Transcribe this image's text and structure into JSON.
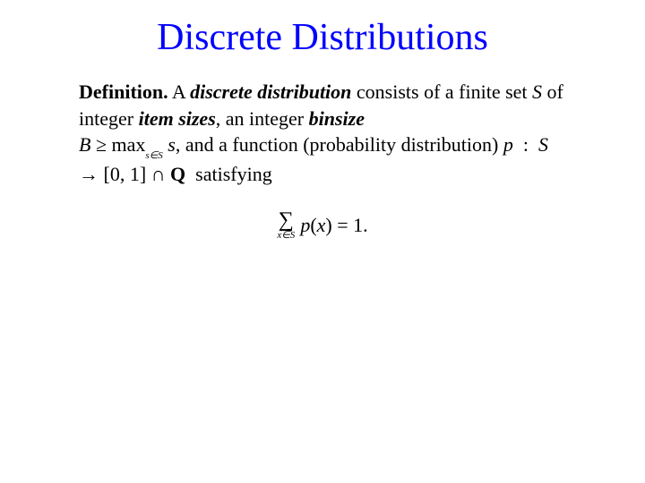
{
  "title": "Discrete Distributions",
  "def_label": "Definition.",
  "a_word": "A",
  "term1": "discrete distribution",
  "txt1": "consists of a finite set",
  "S": "S",
  "txt2": "of integer",
  "term2": "item sizes",
  "txt3": ", an integer",
  "term3": "binsize",
  "B": "B",
  "geq": "≥",
  "max_word": "max",
  "max_sub": "s∈S",
  "s_tail": "s",
  "txt4": ", and a function (probability distribution)",
  "p": "p",
  "colon": ":",
  "arrow": "→",
  "interval": "[0, 1]",
  "cap": "∩",
  "Q": "Q",
  "satisfying": "satisfying",
  "sum_sub": "x∈S",
  "sum_symbol": "∑",
  "px": "p",
  "lp": "(",
  "x": "x",
  "rp": ")",
  "eq1": "= 1.",
  "colors": {
    "title": "#0000ff",
    "text": "#000000",
    "background": "#ffffff"
  },
  "fonts": {
    "title_family": "Comic Sans MS",
    "title_size_pt": 42,
    "body_family": "Times New Roman",
    "body_size_pt": 22
  }
}
